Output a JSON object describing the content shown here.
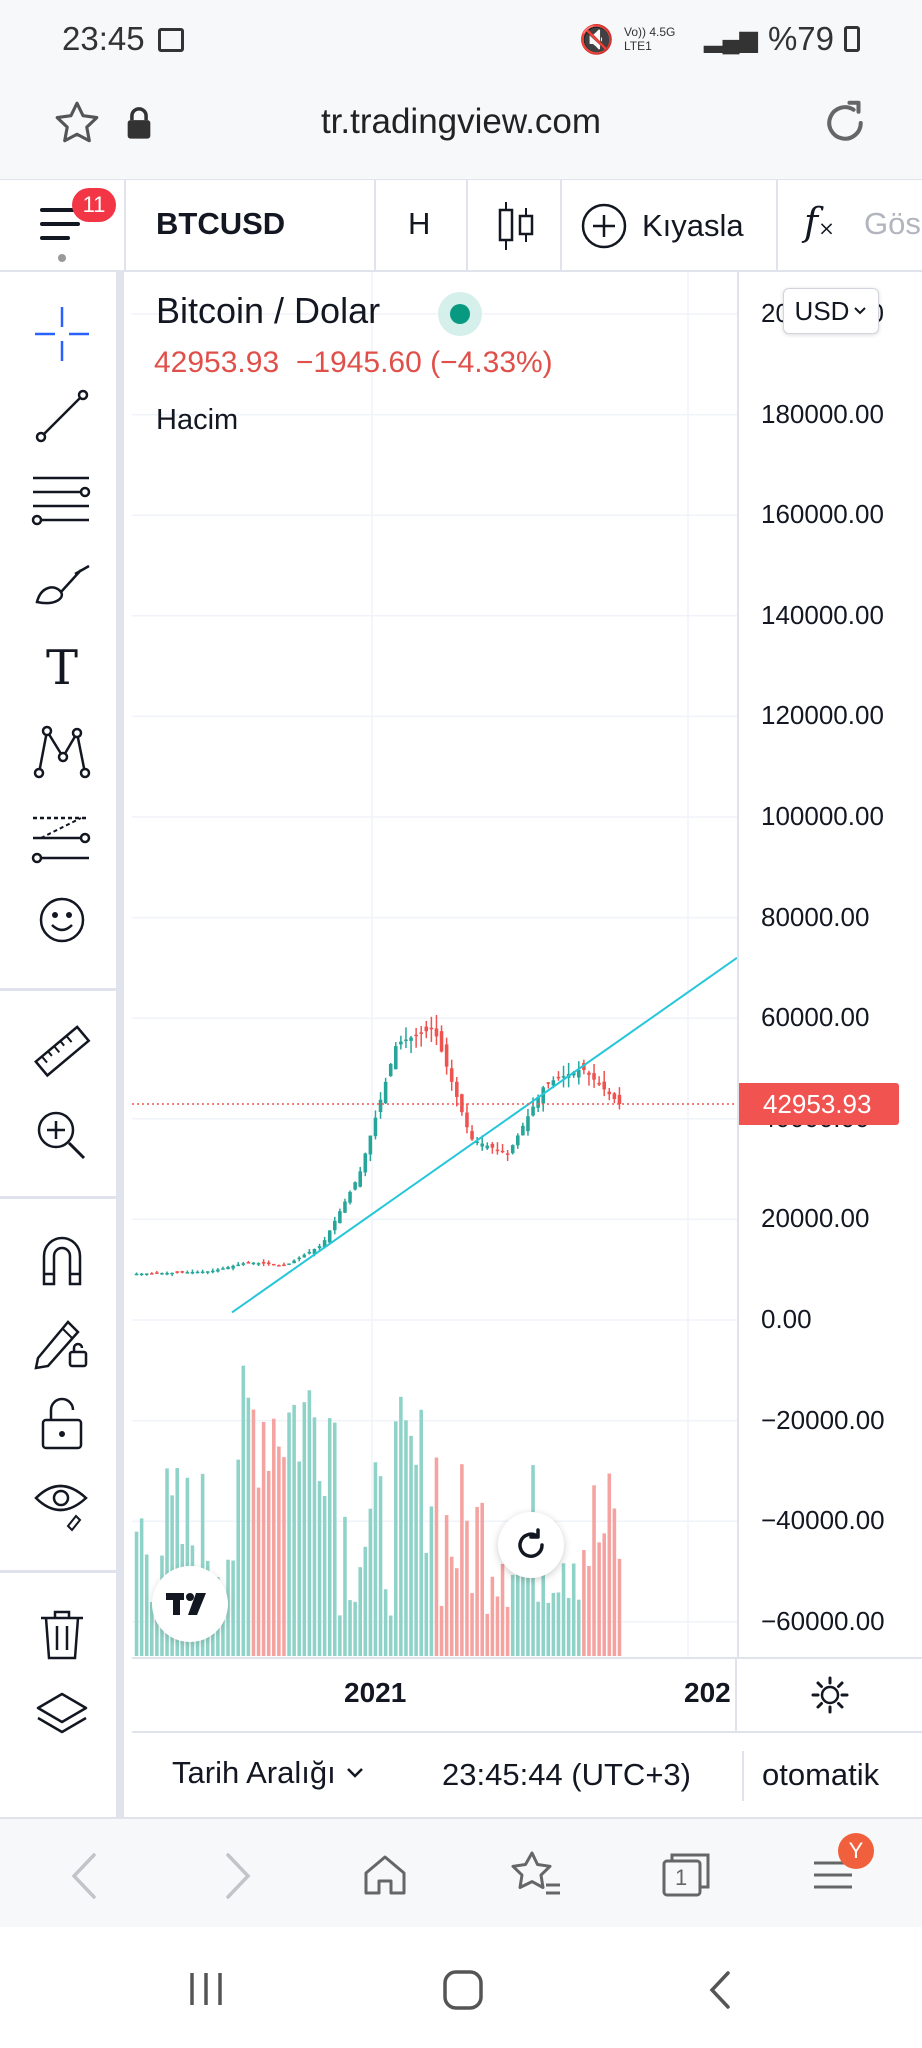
{
  "status_bar": {
    "time": "23:45",
    "network": "Vo)) 4.5G LTE1",
    "battery": "%79"
  },
  "browser": {
    "url": "tr.tradingview.com"
  },
  "toolbar": {
    "notification_count": "11",
    "symbol": "BTCUSD",
    "interval": "H",
    "compare_label": "Kıyasla",
    "indicators_label": "Gös"
  },
  "legend": {
    "title": "Bitcoin / Dolar",
    "price": "42953.93",
    "change": "−1945.60 (−4.33%)",
    "volume_label": "Hacim"
  },
  "currency": "USD",
  "last_price_tag": "42953.93",
  "price_labels": [
    "200000.00",
    "180000.00",
    "160000.00",
    "140000.00",
    "120000.00",
    "100000.00",
    "80000.00",
    "60000.00",
    "40000.00",
    "20000.00",
    "0.00",
    "−20000.00",
    "−40000.00",
    "−60000.00"
  ],
  "time_labels": [
    "2021",
    "202"
  ],
  "bottom_bar": {
    "date_range": "Tarih Aralığı",
    "clock": "23:45:44 (UTC+3)",
    "scale_mode": "otomatik"
  },
  "browser_nav": {
    "tabs_count": "1",
    "profile_initial": "Y"
  },
  "colors": {
    "up": "#26a69a",
    "down": "#ef5350",
    "accent": "#2962ff",
    "trendline": "#26c6da",
    "vol_up": "#8fd3c8",
    "vol_down": "#f5a3a1",
    "badge": "#f0603c"
  },
  "chart_data": {
    "type": "candlestick",
    "symbol": "BTCUSD",
    "ylim": [
      -60000,
      200000
    ],
    "last_price": 42953.93,
    "x": [
      "2020-Q2",
      "2020-Q2",
      "2020-Q3",
      "2020-Q3",
      "2020-Q4",
      "2020-Q4",
      "2021-Q1",
      "2021-Q1",
      "2021-Q2",
      "2021-Q2",
      "2021-Q3",
      "2021-Q3",
      "2021-Q4",
      "2021-Q4"
    ],
    "close": [
      9200,
      9400,
      9700,
      11500,
      10800,
      15000,
      29000,
      55000,
      58000,
      36000,
      33000,
      47000,
      50000,
      42953
    ],
    "trendline": {
      "from": {
        "x": "2020-Q2",
        "y": 1500
      },
      "to": {
        "x": "2022-Q1",
        "y": 72000
      }
    }
  }
}
